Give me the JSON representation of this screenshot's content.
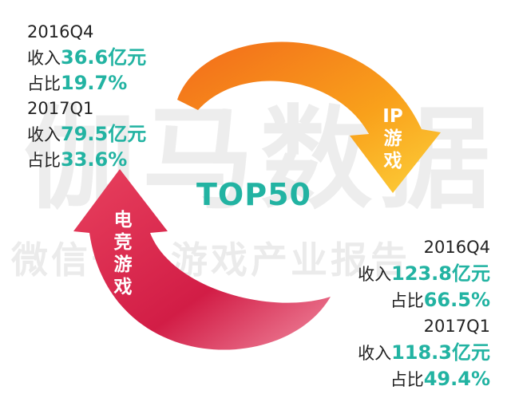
{
  "watermark": {
    "brand": "伽马数据",
    "account": "微信号：游戏产业报告"
  },
  "center_label": "TOP50",
  "arrows": {
    "ip": "IP游戏",
    "esports": "电竞游戏"
  },
  "left": {
    "periods": [
      {
        "period": "2016Q4",
        "revenue_label": "收入",
        "revenue": "36.6亿元",
        "share_label": "占比",
        "share": "19.7%"
      },
      {
        "period": "2017Q1",
        "revenue_label": "收入",
        "revenue": "79.5亿元",
        "share_label": "占比",
        "share": "33.6%"
      }
    ]
  },
  "right": {
    "periods": [
      {
        "period": "2016Q4",
        "revenue_label": "收入",
        "revenue": "123.8亿元",
        "share_label": "占比",
        "share": "66.5%"
      },
      {
        "period": "2017Q1",
        "revenue_label": "收入",
        "revenue": "118.3亿元",
        "share_label": "占比",
        "share": "49.4%"
      }
    ]
  }
}
